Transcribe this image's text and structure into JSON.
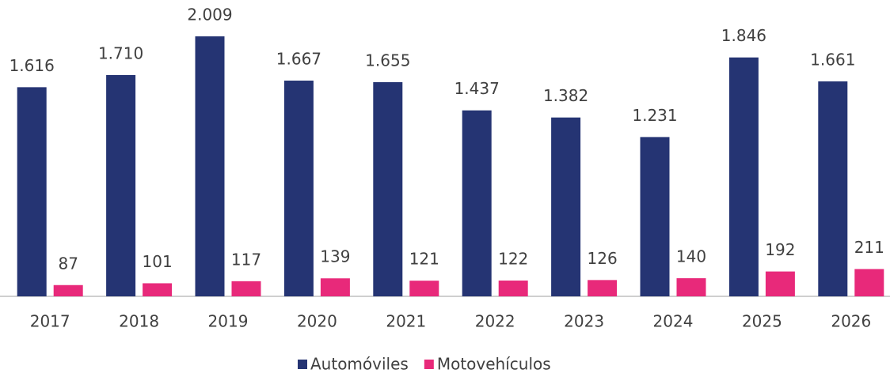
{
  "chart_data": {
    "type": "bar",
    "categories": [
      "2017",
      "2018",
      "2019",
      "2020",
      "2021",
      "2022",
      "2023",
      "2024",
      "2025",
      "2026"
    ],
    "series": [
      {
        "name": "Automóviles",
        "color": "#253473",
        "values": [
          1616,
          1710,
          2009,
          1667,
          1655,
          1437,
          1382,
          1231,
          1846,
          1661
        ],
        "value_labels": [
          "1.616",
          "1.710",
          "2.009",
          "1.667",
          "1.655",
          "1.437",
          "1.382",
          "1.231",
          "1.846",
          "1.661"
        ]
      },
      {
        "name": "Motovehículos",
        "color": "#e8297a",
        "values": [
          87,
          101,
          117,
          139,
          121,
          122,
          126,
          140,
          192,
          211
        ]
      }
    ],
    "legend": "bottom"
  }
}
